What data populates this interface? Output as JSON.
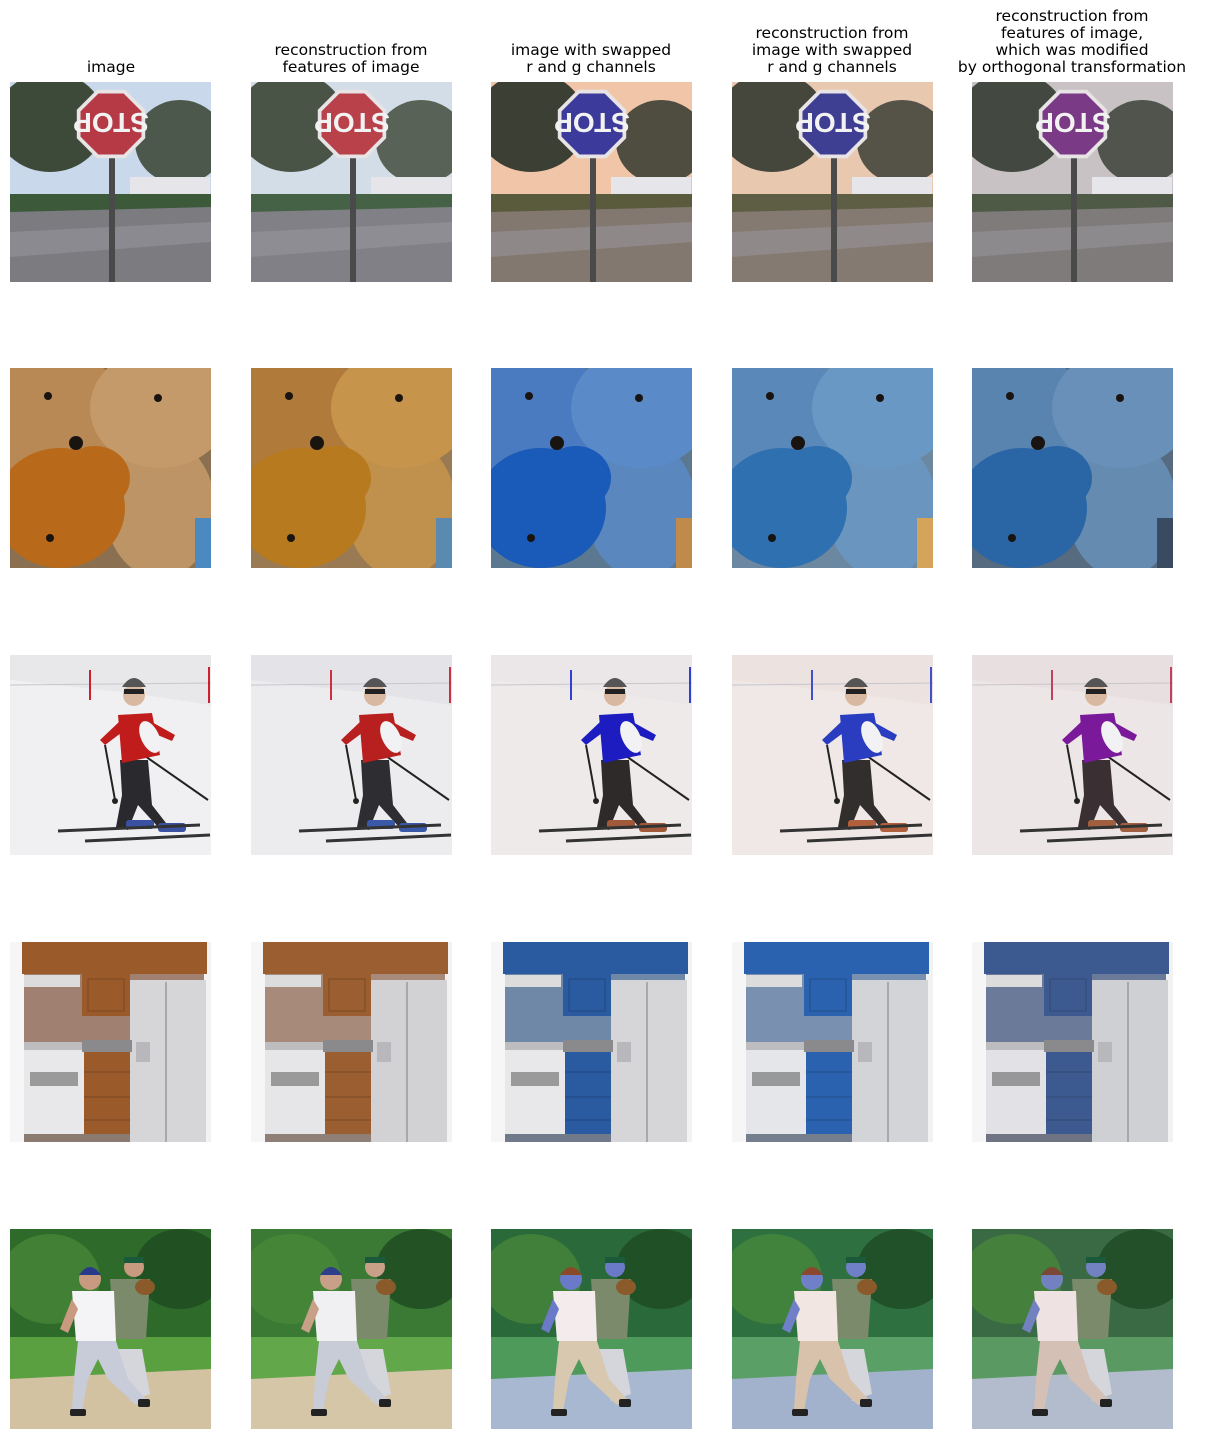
{
  "columns": [
    {
      "title": "image"
    },
    {
      "title": "reconstruction from\nfeatures of image"
    },
    {
      "title": "image with swapped\nr and g channels"
    },
    {
      "title": "reconstruction from\nimage with swapped\nr and g channels"
    },
    {
      "title": "reconstruction from\nfeatures of image,\nwhich was modified\nby orthogonal transformation"
    }
  ],
  "sign_text": "STOP",
  "rows": [
    {
      "scene": "stop-sign",
      "palettes": [
        {
          "sign": "#b53a45",
          "sky": "#c9d8ea",
          "tree": "#3d4a3a",
          "ground": "#7b7b80",
          "hedge": "#3c5a3a"
        },
        {
          "sign": "#b8414a",
          "sky": "#d2dde8",
          "tree": "#4a5446",
          "ground": "#808086",
          "hedge": "#466246"
        },
        {
          "sign": "#3c3a9a",
          "sky": "#f1c6a8",
          "tree": "#3c3f33",
          "ground": "#837870",
          "hedge": "#5a5a3c"
        },
        {
          "sign": "#3e3e92",
          "sky": "#e9c8b0",
          "tree": "#45463c",
          "ground": "#857a72",
          "hedge": "#5e5e45"
        },
        {
          "sign": "#7a3a86",
          "sky": "#c9c2c4",
          "tree": "#434840",
          "ground": "#7e7b7a",
          "hedge": "#4e5a46"
        }
      ]
    },
    {
      "scene": "teddy-bears",
      "palettes": [
        {
          "a": "#b88855",
          "b": "#c49a6a",
          "c": "#b86a1a",
          "d": "#8a7050",
          "e": "#4a8ac0"
        },
        {
          "a": "#b07a3a",
          "b": "#c7944c",
          "c": "#b87a1e",
          "d": "#9a7a52",
          "e": "#5a8ab0"
        },
        {
          "a": "#4a7ac0",
          "b": "#5a8ac8",
          "c": "#1a5ab8",
          "d": "#5c7890",
          "e": "#c08a4a"
        },
        {
          "a": "#5a88b8",
          "b": "#6a98c4",
          "c": "#2f70b0",
          "d": "#6b88a0",
          "e": "#d4a45a"
        },
        {
          "a": "#5a84b0",
          "b": "#6890b8",
          "c": "#2a66a6",
          "d": "#566a80",
          "e": "#3a4a60"
        }
      ]
    },
    {
      "scene": "skier",
      "palettes": [
        {
          "jacket": "#c01c1c",
          "snow": "#f0f0f2",
          "hill": "#e8e8ea",
          "pants": "#2a2a2e",
          "pole": "#d02030",
          "boot": "#3a50a0"
        },
        {
          "jacket": "#b82020",
          "snow": "#ececee",
          "hill": "#e4e4e8",
          "pants": "#2e2e32",
          "pole": "#cc3040",
          "boot": "#3a58a8"
        },
        {
          "jacket": "#1c1cc0",
          "snow": "#eeeaea",
          "hill": "#ebe7e8",
          "pants": "#2e2a2a",
          "pole": "#3040d0",
          "boot": "#a05a3a"
        },
        {
          "jacket": "#2a3cc0",
          "snow": "#f0e8e6",
          "hill": "#ece2e0",
          "pants": "#332e2e",
          "pole": "#4050c8",
          "boot": "#b0603c"
        },
        {
          "jacket": "#7a1a9a",
          "snow": "#ede6e6",
          "hill": "#e8dfe0",
          "pants": "#3a3034",
          "pole": "#c04060",
          "boot": "#a06040"
        }
      ]
    },
    {
      "scene": "kitchen",
      "palettes": [
        {
          "cab": "#9a5a2a",
          "wall": "#a08070",
          "fridge": "#d6d6d8",
          "floor": "#8a7a70",
          "stove": "#e8e8ea"
        },
        {
          "cab": "#9a5e30",
          "wall": "#a88a7a",
          "fridge": "#d2d2d4",
          "floor": "#8e8076",
          "stove": "#e6e6e8"
        },
        {
          "cab": "#2a5aa0",
          "wall": "#7088a8",
          "fridge": "#d6d6d8",
          "floor": "#707a8a",
          "stove": "#e8e8ea"
        },
        {
          "cab": "#2a62b0",
          "wall": "#7a90b0",
          "fridge": "#d2d4d8",
          "floor": "#747e8c",
          "stove": "#e4e6ea"
        },
        {
          "cab": "#3c5a90",
          "wall": "#6a7a98",
          "fridge": "#cfd0d4",
          "floor": "#6e7482",
          "stove": "#e2e2e6"
        }
      ]
    },
    {
      "scene": "baseball",
      "palettes": [
        {
          "trees": "#2e6a2a",
          "grass": "#5aa040",
          "dirt": "#d2c2a2",
          "shirt": "#f4f4f6",
          "pants": "#c8cbd8",
          "helmet": "#2a3a8a",
          "arm": "#c89a80"
        },
        {
          "trees": "#3a7a34",
          "grass": "#62a84a",
          "dirt": "#d6c6a8",
          "shirt": "#f0f0f2",
          "pants": "#c8ccd6",
          "helmet": "#2e3e88",
          "arm": "#c8a088"
        },
        {
          "trees": "#2a6a3a",
          "grass": "#4e9a5a",
          "dirt": "#a8b8d0",
          "shirt": "#f4ecec",
          "pants": "#d8c8b0",
          "helmet": "#8a4a2a",
          "arm": "#6a7ac8"
        },
        {
          "trees": "#2e7040",
          "grass": "#5aa066",
          "dirt": "#a2b2cc",
          "shirt": "#f2e6e2",
          "pants": "#d8c2ac",
          "helmet": "#8a4830",
          "arm": "#7080c8"
        },
        {
          "trees": "#3a6a44",
          "grass": "#5a9a62",
          "dirt": "#b2bccc",
          "shirt": "#efe2e2",
          "pants": "#d4c0b4",
          "helmet": "#7a4834",
          "arm": "#7282c0"
        }
      ]
    }
  ]
}
